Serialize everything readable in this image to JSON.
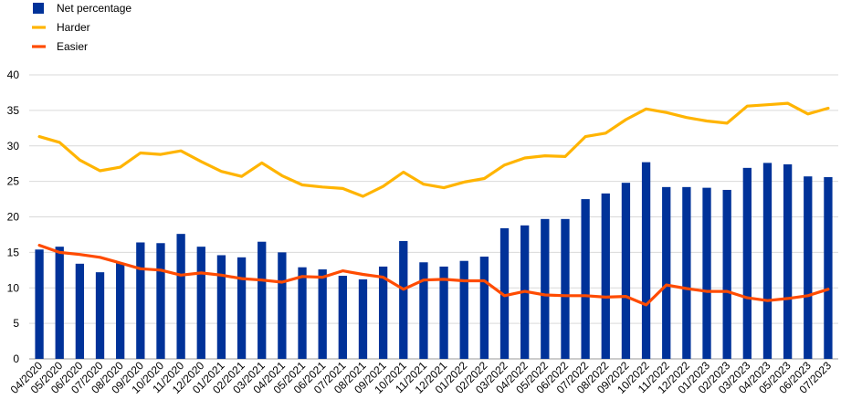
{
  "chart_data": {
    "type": "bar",
    "categories": [
      "04/2020",
      "05/2020",
      "06/2020",
      "07/2020",
      "08/2020",
      "09/2020",
      "10/2020",
      "11/2020",
      "12/2020",
      "01/2021",
      "02/2021",
      "03/2021",
      "04/2021",
      "05/2021",
      "06/2021",
      "07/2021",
      "08/2021",
      "09/2021",
      "10/2021",
      "11/2021",
      "12/2021",
      "01/2022",
      "02/2022",
      "03/2022",
      "04/2022",
      "05/2022",
      "06/2022",
      "07/2022",
      "08/2022",
      "09/2022",
      "10/2022",
      "11/2022",
      "12/2022",
      "01/2023",
      "02/2023",
      "03/2023",
      "04/2023",
      "05/2023",
      "06/2023",
      "07/2023"
    ],
    "series": [
      {
        "name": "Net percentage",
        "kind": "bar",
        "color": "#003299",
        "values": [
          15.4,
          15.8,
          13.4,
          12.2,
          13.5,
          16.4,
          16.3,
          17.6,
          15.8,
          14.6,
          14.3,
          16.5,
          15.0,
          12.9,
          12.6,
          11.7,
          11.2,
          13.0,
          16.6,
          13.6,
          13.0,
          13.8,
          14.4,
          18.4,
          18.8,
          19.7,
          19.7,
          22.5,
          23.3,
          24.8,
          27.7,
          24.2,
          24.2,
          24.1,
          23.8,
          26.9,
          27.6,
          27.4,
          25.7,
          25.6
        ]
      },
      {
        "name": "Harder",
        "kind": "line",
        "color": "#FFB400",
        "values": [
          31.3,
          30.5,
          28.0,
          26.5,
          27.0,
          29.0,
          28.8,
          29.3,
          27.8,
          26.4,
          25.7,
          27.6,
          25.8,
          24.5,
          24.2,
          24.0,
          22.9,
          24.3,
          26.3,
          24.6,
          24.1,
          24.9,
          25.4,
          27.3,
          28.3,
          28.6,
          28.5,
          31.3,
          31.8,
          33.7,
          35.2,
          34.7,
          34.0,
          33.5,
          33.2,
          35.6,
          35.8,
          36.0,
          34.5,
          35.3
        ]
      },
      {
        "name": "Easier",
        "kind": "line",
        "color": "#FF4B00",
        "values": [
          16.0,
          15.0,
          14.7,
          14.3,
          13.5,
          12.7,
          12.5,
          11.8,
          12.1,
          11.8,
          11.3,
          11.1,
          10.8,
          11.6,
          11.5,
          12.4,
          11.9,
          11.5,
          9.8,
          11.1,
          11.2,
          11.0,
          11.0,
          8.9,
          9.5,
          9.0,
          8.9,
          8.9,
          8.7,
          8.8,
          7.6,
          10.4,
          9.9,
          9.5,
          9.5,
          8.6,
          8.2,
          8.5,
          8.9,
          9.8
        ]
      }
    ],
    "title": "",
    "xlabel": "",
    "ylabel": "",
    "ylim": [
      0,
      40
    ],
    "yticks": [
      "0",
      "5",
      "10",
      "15",
      "20",
      "25",
      "30",
      "35",
      "40"
    ],
    "grid": true,
    "legend_position": "top-left"
  }
}
